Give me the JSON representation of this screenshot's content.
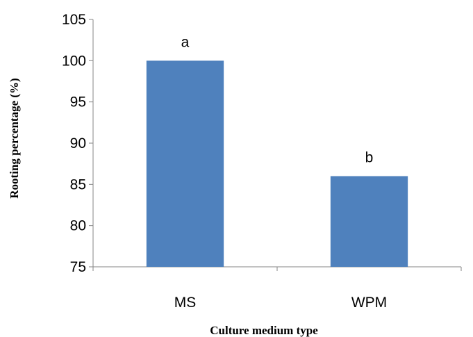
{
  "chart_data": {
    "type": "bar",
    "title": "",
    "xlabel": "Culture medium type",
    "ylabel": "Rooting percentage (%)",
    "categories": [
      "MS",
      "WPM"
    ],
    "series": [
      {
        "values": [
          100,
          86
        ],
        "color": "#4F81BD",
        "data_labels": [
          "a",
          "b"
        ]
      }
    ],
    "ylim": [
      75,
      105
    ],
    "yticks": [
      75,
      80,
      85,
      90,
      95,
      100,
      105
    ],
    "grid": false,
    "legend": "none"
  }
}
